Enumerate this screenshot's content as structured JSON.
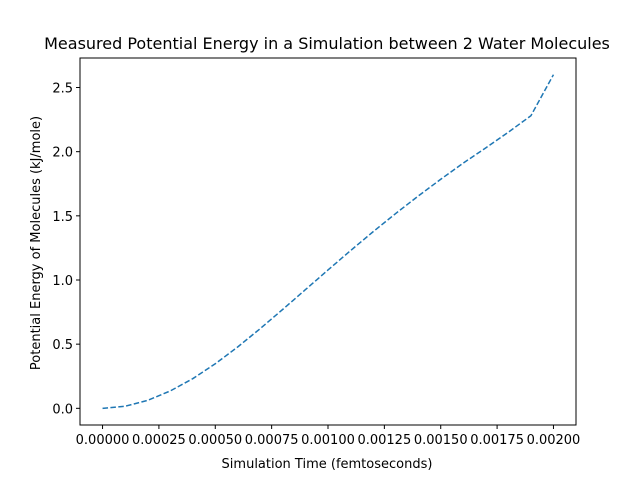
{
  "chart_data": {
    "type": "line",
    "title": "Measured Potential Energy in a Simulation between 2 Water Molecules",
    "xlabel": "Simulation Time (femtoseconds)",
    "ylabel": "Potential Energy of Molecules (kJ/mole)",
    "xlim": [
      -0.0001,
      0.0021
    ],
    "ylim": [
      -0.13,
      2.73
    ],
    "x_ticks": [
      0.0,
      0.00025,
      0.0005,
      0.00075,
      0.001,
      0.00125,
      0.0015,
      0.00175,
      0.002
    ],
    "x_tick_labels": [
      "0.00000",
      "0.00025",
      "0.00050",
      "0.00075",
      "0.00100",
      "0.00125",
      "0.00150",
      "0.00175",
      "0.00200"
    ],
    "y_ticks": [
      0.0,
      0.5,
      1.0,
      1.5,
      2.0,
      2.5
    ],
    "y_tick_labels": [
      "0.0",
      "0.5",
      "1.0",
      "1.5",
      "2.0",
      "2.5"
    ],
    "grid": false,
    "series": [
      {
        "line_style": "dashed",
        "color": "#1f77b4",
        "x": [
          0.0,
          0.0001,
          0.0002,
          0.0003,
          0.0004,
          0.0005,
          0.0006,
          0.0007,
          0.0008,
          0.0009,
          0.001,
          0.0011,
          0.0012,
          0.0013,
          0.0014,
          0.0015,
          0.0016,
          0.0017,
          0.0018,
          0.0019,
          0.002
        ],
        "y": [
          0.0,
          0.016,
          0.062,
          0.135,
          0.231,
          0.347,
          0.479,
          0.622,
          0.772,
          0.925,
          1.078,
          1.229,
          1.376,
          1.518,
          1.654,
          1.785,
          1.911,
          2.03,
          2.152,
          2.28,
          2.6
        ]
      }
    ]
  }
}
